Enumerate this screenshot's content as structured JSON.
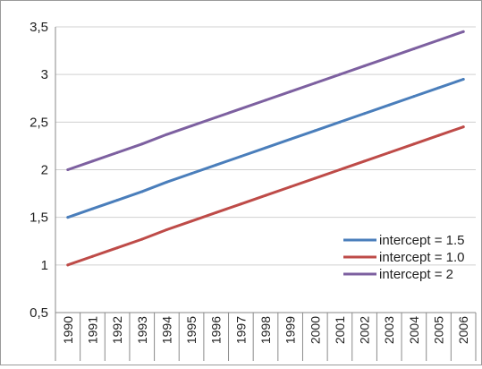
{
  "chart_data": {
    "type": "line",
    "categories": [
      "1990",
      "1991",
      "1992",
      "1993",
      "1994",
      "1995",
      "1996",
      "1997",
      "1998",
      "1999",
      "2000",
      "2001",
      "2002",
      "2003",
      "2004",
      "2005",
      "2006"
    ],
    "y_tick_labels": [
      "0,5",
      "1",
      "1,5",
      "2",
      "2,5",
      "3",
      "3,5"
    ],
    "y_ticks": [
      0.5,
      1,
      1.5,
      2,
      2.5,
      3,
      3.5
    ],
    "ylim": [
      0.5,
      3.5
    ],
    "grid": "horizontal",
    "legend_position": "bottom-right",
    "series": [
      {
        "name": "intercept = 1.5",
        "color": "#4a7ebb",
        "values": [
          1.5,
          1.59,
          1.68,
          1.77,
          1.87,
          1.96,
          2.05,
          2.14,
          2.23,
          2.32,
          2.41,
          2.5,
          2.59,
          2.68,
          2.77,
          2.86,
          2.95
        ]
      },
      {
        "name": "intercept = 1.0",
        "color": "#be4b48",
        "values": [
          1.0,
          1.09,
          1.18,
          1.27,
          1.37,
          1.46,
          1.55,
          1.64,
          1.73,
          1.82,
          1.91,
          2.0,
          2.09,
          2.18,
          2.27,
          2.36,
          2.45
        ]
      },
      {
        "name": "intercept = 2",
        "color": "#7d60a0",
        "values": [
          2.0,
          2.09,
          2.18,
          2.27,
          2.37,
          2.46,
          2.55,
          2.64,
          2.73,
          2.82,
          2.91,
          3.0,
          3.09,
          3.18,
          3.27,
          3.36,
          3.45
        ]
      }
    ]
  }
}
